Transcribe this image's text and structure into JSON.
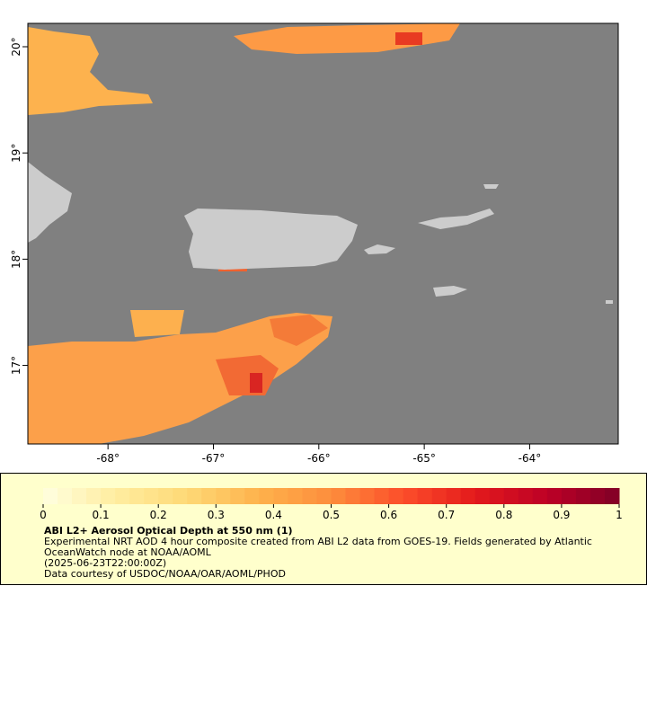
{
  "map": {
    "xlim": [
      -68.76,
      -63.16
    ],
    "ylim": [
      16.26,
      20.22
    ],
    "xticks": [
      {
        "value": -68,
        "label": "-68°"
      },
      {
        "value": -67,
        "label": "-67°"
      },
      {
        "value": -66,
        "label": "-66°"
      },
      {
        "value": -65,
        "label": "-65°"
      },
      {
        "value": -64,
        "label": "-64°"
      }
    ],
    "yticks": [
      {
        "value": 17,
        "label": "17°"
      },
      {
        "value": 18,
        "label": "18°"
      },
      {
        "value": 19,
        "label": "19°"
      },
      {
        "value": 20,
        "label": "20°"
      }
    ],
    "ocean_color": "#808080",
    "land_color": "#cccccc"
  },
  "colorbar": {
    "lim": [
      0,
      1
    ],
    "ticks": [
      0,
      0.1,
      0.2,
      0.3,
      0.4,
      0.5,
      0.6,
      0.7,
      0.8,
      0.9,
      1
    ],
    "steps": 40,
    "colormap": [
      "#ffffe0",
      "#ffeda0",
      "#fed976",
      "#feb24c",
      "#fd8d3c",
      "#fc4e2a",
      "#e31a1c",
      "#bd0026",
      "#800026"
    ]
  },
  "legend": {
    "title": "ABI L2+ Aerosol Optical Depth at 550 nm (1)",
    "description": "Experimental NRT AOD 4 hour composite created from ABI L2 data from GOES-19. Fields generated by Atlantic OceanWatch node at NOAA/AOML",
    "time": "(2025-06-23T22:00:00Z)",
    "credit": "Data courtesy of USDOC/NOAA/OAR/AOML/PHOD"
  }
}
